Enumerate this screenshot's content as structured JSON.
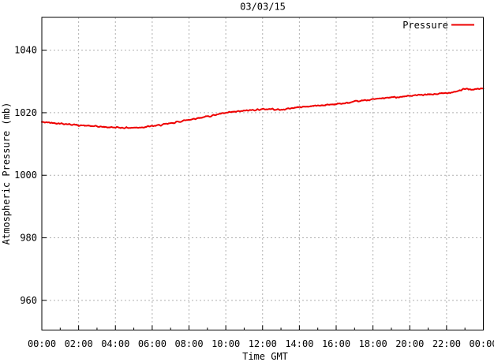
{
  "chart_data": {
    "type": "line",
    "title": "03/03/15",
    "xlabel": "Time GMT",
    "ylabel": "Atmospheric Pressure (mb)",
    "xlim_hours": [
      0,
      24
    ],
    "ylim": [
      950.5,
      1050.5
    ],
    "grid": true,
    "x_major_ticks_hours": [
      0,
      2,
      4,
      6,
      8,
      10,
      12,
      14,
      16,
      18,
      20,
      22,
      24
    ],
    "x_tick_labels": [
      "00:00",
      "02:00",
      "04:00",
      "06:00",
      "08:00",
      "10:00",
      "12:00",
      "14:00",
      "16:00",
      "18:00",
      "20:00",
      "22:00",
      "00:00"
    ],
    "x_minor_ticks_hours": [
      1,
      3,
      5,
      7,
      9,
      11,
      13,
      15,
      17,
      19,
      21,
      23
    ],
    "y_ticks": [
      960,
      980,
      1000,
      1020,
      1040
    ],
    "y_tick_labels": [
      "960",
      "980",
      "1000",
      "1020",
      "1040"
    ],
    "legend": {
      "position": "top-right-inside",
      "label": "Pressure"
    },
    "colors": {
      "line": "#ee0000",
      "grid": "#b0b0b0",
      "axis": "#000000",
      "background": "#ffffff"
    },
    "noise_mb": 0.3,
    "series": [
      {
        "name": "Pressure",
        "color": "#ee0000",
        "x_hours": [
          0,
          0.5,
          1,
          1.5,
          2,
          2.5,
          3,
          3.5,
          4,
          4.5,
          5,
          5.5,
          6,
          6.5,
          7,
          7.5,
          8,
          8.5,
          9,
          9.5,
          10,
          10.5,
          11,
          11.5,
          12,
          12.5,
          13,
          13.5,
          14,
          14.5,
          15,
          15.5,
          16,
          16.5,
          17,
          17.5,
          18,
          18.5,
          19,
          19.5,
          20,
          20.5,
          21,
          21.5,
          22,
          22.5,
          23,
          23.5,
          24
        ],
        "values": [
          1017.0,
          1016.8,
          1016.6,
          1016.3,
          1016.0,
          1015.8,
          1015.6,
          1015.4,
          1015.3,
          1015.2,
          1015.2,
          1015.4,
          1015.7,
          1016.1,
          1016.6,
          1017.2,
          1017.8,
          1018.3,
          1018.8,
          1019.4,
          1019.9,
          1020.3,
          1020.6,
          1020.9,
          1021.1,
          1021.2,
          1020.9,
          1021.4,
          1021.8,
          1022.0,
          1022.3,
          1022.5,
          1022.8,
          1023.0,
          1023.5,
          1023.9,
          1024.3,
          1024.6,
          1024.9,
          1025.1,
          1025.4,
          1025.6,
          1025.8,
          1026.0,
          1026.3,
          1026.8,
          1027.6,
          1027.4,
          1027.8
        ]
      }
    ]
  }
}
